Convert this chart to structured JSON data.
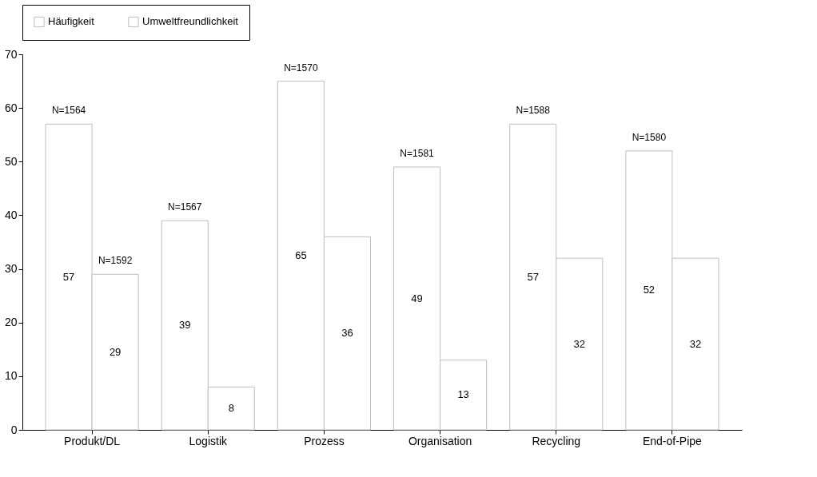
{
  "chart_data": {
    "type": "bar",
    "categories": [
      "Produkt/DL",
      "Logistik",
      "Prozess",
      "Organisation",
      "Recycling",
      "End-of-Pipe"
    ],
    "series": [
      {
        "name": "Häufigkeit",
        "color": "#ffffff",
        "values": [
          57,
          39,
          65,
          49,
          57,
          52
        ]
      },
      {
        "name": "Umweltfreundlichkeit",
        "color": "#ffffff",
        "values": [
          29,
          8,
          36,
          13,
          32,
          32
        ]
      }
    ],
    "ylim": [
      0,
      70
    ],
    "yticks": [
      0,
      10,
      20,
      30,
      40,
      50,
      60,
      70
    ],
    "grid": false,
    "legend": "top",
    "data_labels": true,
    "annotations": [
      {
        "text": "N=1564",
        "x": "Produkt/DL",
        "y": 57
      },
      {
        "text": "N=1592",
        "x": "Produkt/DL",
        "y": 29
      },
      {
        "text": "N=1567",
        "x": "Logistik",
        "y": 39
      },
      {
        "text": "N=1570",
        "x": "Prozess",
        "y": 65
      },
      {
        "text": "N=1581",
        "x": "Organisation",
        "y": 49
      },
      {
        "text": "N=1588",
        "x": "Recycling",
        "y": 57
      },
      {
        "text": "N=1580",
        "x": "End-of-Pipe",
        "y": 52
      }
    ]
  }
}
